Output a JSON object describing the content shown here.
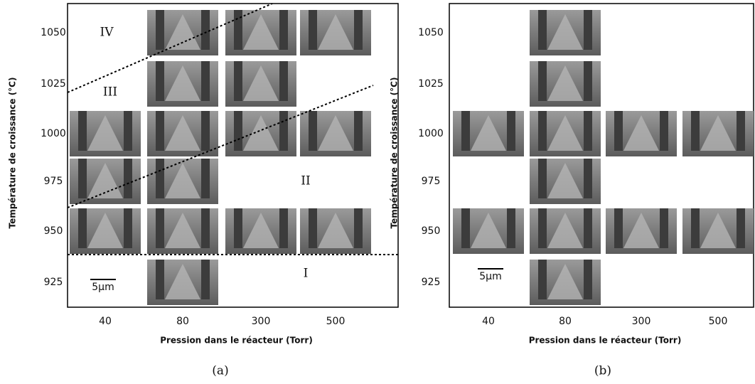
{
  "panels": [
    {
      "y_label": "Température de croissance (°C)",
      "y_ticks": [
        "1050",
        "1025",
        "1000",
        "975",
        "950",
        "925"
      ],
      "x_ticks": [
        "40",
        "80",
        "300",
        "500"
      ],
      "x_label": "Pression dans le réacteur (Torr)",
      "regions": [
        "IV",
        "III",
        "II",
        "I"
      ],
      "scale_bar": "5µm",
      "caption": "(a)"
    },
    {
      "y_label": "Température de croissance (°C)",
      "y_ticks": [
        "1050",
        "1025",
        "1000",
        "975",
        "950",
        "925"
      ],
      "x_ticks": [
        "40",
        "80",
        "300",
        "500"
      ],
      "x_label": "Pression dans le réacteur (Torr)",
      "scale_bar": "5µm",
      "caption": "(b)"
    }
  ]
}
